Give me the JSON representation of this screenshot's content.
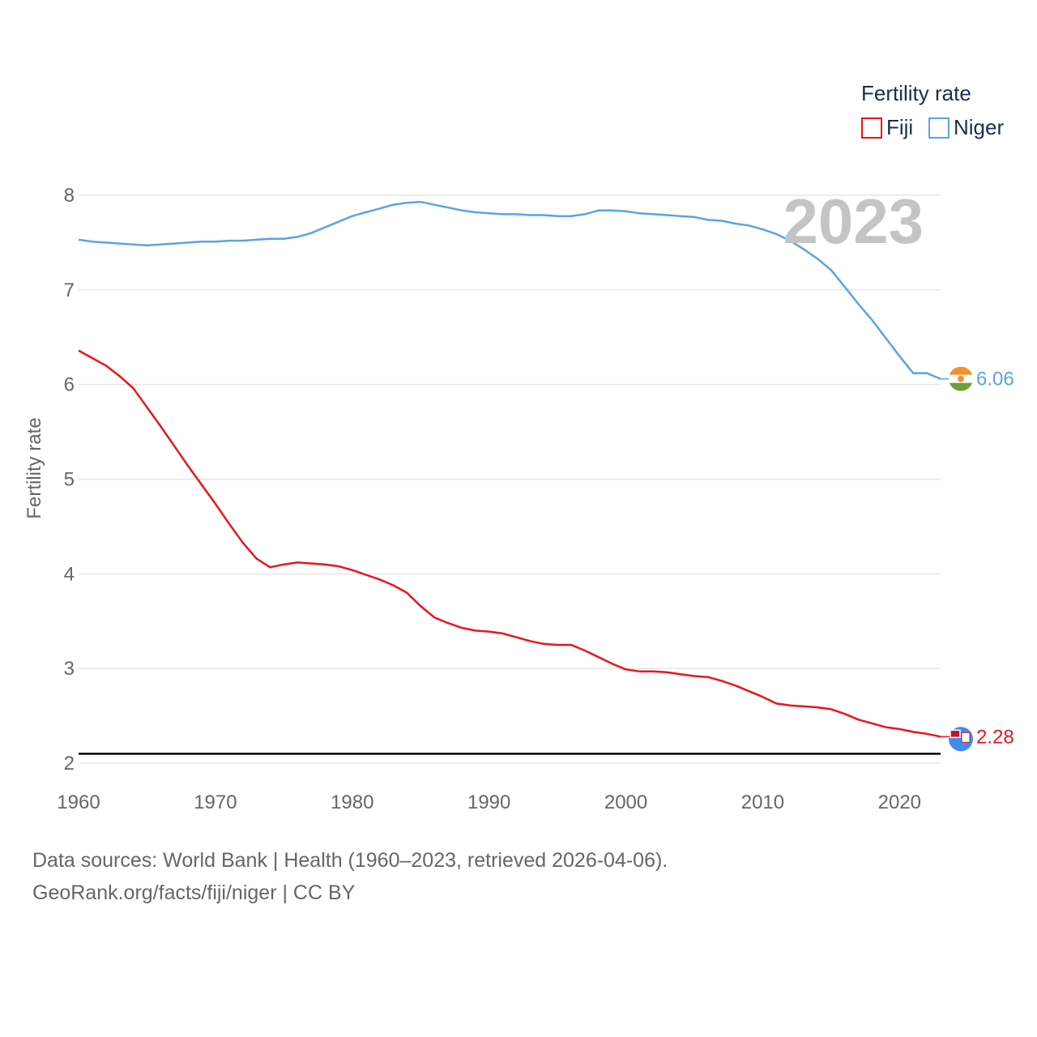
{
  "chart_data": {
    "type": "line",
    "title": "",
    "legend_title": "Fertility rate",
    "ylabel": "Fertility rate",
    "xlabel": "",
    "year_label": "2023",
    "xlim": [
      1960,
      2023
    ],
    "ylim": [
      2,
      8
    ],
    "x_ticks": [
      1960,
      1970,
      1980,
      1990,
      2000,
      2010,
      2020
    ],
    "y_ticks": [
      2,
      3,
      4,
      5,
      6,
      7,
      8
    ],
    "reference_line": 2.1,
    "legend_position": "top-right",
    "x": [
      1960,
      1961,
      1962,
      1963,
      1964,
      1965,
      1966,
      1967,
      1968,
      1969,
      1970,
      1971,
      1972,
      1973,
      1974,
      1975,
      1976,
      1977,
      1978,
      1979,
      1980,
      1981,
      1982,
      1983,
      1984,
      1985,
      1986,
      1987,
      1988,
      1989,
      1990,
      1991,
      1992,
      1993,
      1994,
      1995,
      1996,
      1997,
      1998,
      1999,
      2000,
      2001,
      2002,
      2003,
      2004,
      2005,
      2006,
      2007,
      2008,
      2009,
      2010,
      2011,
      2012,
      2013,
      2014,
      2015,
      2016,
      2017,
      2018,
      2019,
      2020,
      2021,
      2022,
      2023
    ],
    "series": [
      {
        "name": "Fiji",
        "color": "#e8161c",
        "end_value_label": "2.28",
        "values": [
          6.36,
          6.28,
          6.2,
          6.09,
          5.96,
          5.76,
          5.56,
          5.35,
          5.14,
          4.94,
          4.74,
          4.53,
          4.33,
          4.16,
          4.07,
          4.1,
          4.12,
          4.11,
          4.1,
          4.08,
          4.04,
          3.99,
          3.94,
          3.88,
          3.8,
          3.66,
          3.54,
          3.48,
          3.43,
          3.4,
          3.39,
          3.37,
          3.33,
          3.29,
          3.26,
          3.25,
          3.25,
          3.19,
          3.12,
          3.05,
          2.99,
          2.97,
          2.97,
          2.96,
          2.94,
          2.92,
          2.91,
          2.87,
          2.82,
          2.76,
          2.7,
          2.63,
          2.61,
          2.6,
          2.59,
          2.57,
          2.52,
          2.46,
          2.42,
          2.38,
          2.36,
          2.33,
          2.31,
          2.28
        ]
      },
      {
        "name": "Niger",
        "color": "#5ba3e6",
        "end_value_label": "6.06",
        "values": [
          7.53,
          7.51,
          7.5,
          7.49,
          7.48,
          7.47,
          7.48,
          7.49,
          7.5,
          7.51,
          7.51,
          7.52,
          7.52,
          7.53,
          7.54,
          7.54,
          7.56,
          7.6,
          7.66,
          7.72,
          7.78,
          7.82,
          7.86,
          7.9,
          7.92,
          7.93,
          7.9,
          7.87,
          7.84,
          7.82,
          7.81,
          7.8,
          7.8,
          7.79,
          7.79,
          7.78,
          7.78,
          7.8,
          7.84,
          7.84,
          7.83,
          7.81,
          7.8,
          7.79,
          7.78,
          7.77,
          7.74,
          7.73,
          7.7,
          7.68,
          7.64,
          7.59,
          7.52,
          7.43,
          7.33,
          7.21,
          7.03,
          6.85,
          6.68,
          6.49,
          6.3,
          6.12,
          6.12,
          6.06
        ]
      }
    ]
  },
  "footer": {
    "line1": "Data sources: World Bank | Health (1960–2023, retrieved 2026-04-06).",
    "line2": "GeoRank.org/facts/fiji/niger | CC BY"
  },
  "colors": {
    "grid": "#e6e6e6",
    "reference_line": "#000000",
    "niger_flag_orange": "#f5902a",
    "niger_flag_green": "#6f9e3a",
    "fiji_flag_blue": "#3f8fe8"
  }
}
